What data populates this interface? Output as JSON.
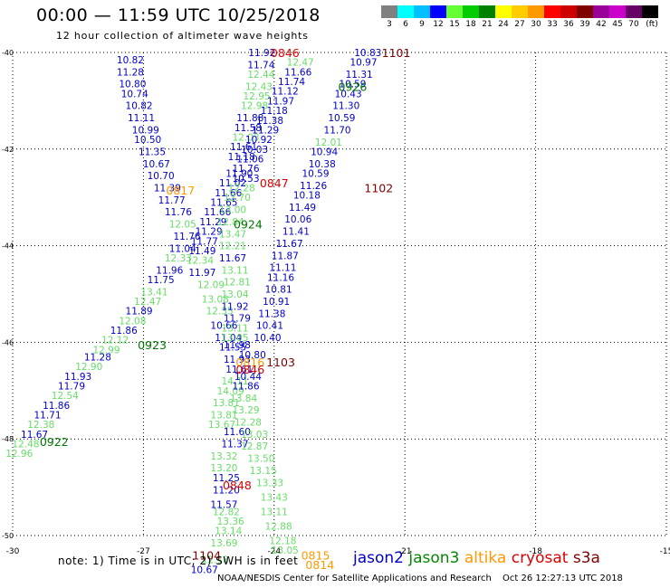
{
  "header": {
    "title": "00:00 — 11:59 UTC 10/25/2018",
    "subtitle": "12 hour collection of altimeter wave heights",
    "legend_unit": "(ft)"
  },
  "legend": {
    "colors": [
      "#808080",
      "#00ffff",
      "#00bfff",
      "#0000ff",
      "#66ff33",
      "#00cc00",
      "#008000",
      "#ffff00",
      "#ffcc00",
      "#ff9900",
      "#ff0000",
      "#cc0000",
      "#800000",
      "#990099",
      "#cc00cc",
      "#660066",
      "#000000"
    ],
    "labels": [
      "3",
      "6",
      "9",
      "12",
      "15",
      "18",
      "21",
      "24",
      "27",
      "30",
      "33",
      "36",
      "39",
      "42",
      "45",
      "70"
    ]
  },
  "colors": {
    "jason2": "#0000cc",
    "jason3": "#007700",
    "altika": "#ff9900",
    "cryosat": "#dd0000",
    "s3a": "#800000",
    "light": "#66dd66"
  },
  "chart_data": {
    "type": "scatter",
    "x_ticks": [
      "-30",
      "-27",
      "-24",
      "-21",
      "-18",
      "-15"
    ],
    "y_ticks": [
      "-40",
      "-42",
      "-44",
      "-46",
      "-48",
      "-50"
    ],
    "xlim": [
      -30,
      -15
    ],
    "ylim": [
      -50,
      -40
    ],
    "grid": true,
    "points": [
      {
        "t": "11.92",
        "c": "b",
        "lon": -24.28,
        "lat": -40.0
      },
      {
        "t": "11.74",
        "c": "b",
        "lon": -24.3,
        "lat": -40.25
      },
      {
        "t": "12.44",
        "c": "l",
        "lon": -24.3,
        "lat": -40.45
      },
      {
        "t": "12.43",
        "c": "l",
        "lon": -24.35,
        "lat": -40.7
      },
      {
        "t": "12.95",
        "c": "l",
        "lon": -24.4,
        "lat": -40.9
      },
      {
        "t": "12.98",
        "c": "l",
        "lon": -24.45,
        "lat": -41.1
      },
      {
        "t": "11.88",
        "c": "b",
        "lon": -24.55,
        "lat": -41.35
      },
      {
        "t": "11.58",
        "c": "b",
        "lon": -24.6,
        "lat": -41.55
      },
      {
        "t": "12.03",
        "c": "l",
        "lon": -24.65,
        "lat": -41.75
      },
      {
        "t": "11.61",
        "c": "b",
        "lon": -24.7,
        "lat": -41.95
      },
      {
        "t": "11.18",
        "c": "b",
        "lon": -24.75,
        "lat": -42.15
      },
      {
        "t": "11.90",
        "c": "b",
        "lon": -24.8,
        "lat": -42.5
      },
      {
        "t": "11.02",
        "c": "b",
        "lon": -24.95,
        "lat": -42.7
      },
      {
        "t": "11.66",
        "c": "b",
        "lon": -25.05,
        "lat": -42.9
      },
      {
        "t": "11.65",
        "c": "b",
        "lon": -25.15,
        "lat": -43.1
      },
      {
        "t": "11.66",
        "c": "b",
        "lon": -25.3,
        "lat": -43.3
      },
      {
        "t": "11.29",
        "c": "b",
        "lon": -25.4,
        "lat": -43.5
      },
      {
        "t": "11.29",
        "c": "b",
        "lon": -25.5,
        "lat": -43.7
      },
      {
        "t": "11.77",
        "c": "b",
        "lon": -25.6,
        "lat": -43.9
      },
      {
        "t": "11.49",
        "c": "b",
        "lon": -25.65,
        "lat": -44.1
      },
      {
        "t": "12.34",
        "c": "l",
        "lon": -25.7,
        "lat": -44.3
      },
      {
        "t": "11.97",
        "c": "b",
        "lon": -25.65,
        "lat": -44.55
      },
      {
        "t": "12.09",
        "c": "l",
        "lon": -25.45,
        "lat": -44.8
      },
      {
        "t": "13.08",
        "c": "l",
        "lon": -25.35,
        "lat": -45.1
      },
      {
        "t": "12.35",
        "c": "l",
        "lon": -25.25,
        "lat": -45.35
      },
      {
        "t": "10.66",
        "c": "b",
        "lon": -25.15,
        "lat": -45.65
      },
      {
        "t": "11.04",
        "c": "b",
        "lon": -25.05,
        "lat": -45.9
      },
      {
        "t": "11.55",
        "c": "b",
        "lon": -24.95,
        "lat": -46.1
      },
      {
        "t": "11.93",
        "c": "b",
        "lon": -24.85,
        "lat": -46.35
      },
      {
        "t": "11.61",
        "c": "b",
        "lon": -24.8,
        "lat": -46.55
      },
      {
        "t": "14.11",
        "c": "l",
        "lon": -24.9,
        "lat": -46.8
      },
      {
        "t": "14.09",
        "c": "l",
        "lon": -25.0,
        "lat": -47.0
      },
      {
        "t": "13.81",
        "c": "l",
        "lon": -25.1,
        "lat": -47.25
      },
      {
        "t": "13.81",
        "c": "l",
        "lon": -25.15,
        "lat": -47.5
      },
      {
        "t": "13.67",
        "c": "l",
        "lon": -25.2,
        "lat": -47.7
      },
      {
        "t": "11.60",
        "c": "b",
        "lon": -24.85,
        "lat": -47.85
      },
      {
        "t": "11.37",
        "c": "b",
        "lon": -24.9,
        "lat": -48.1
      },
      {
        "t": "13.32",
        "c": "l",
        "lon": -25.15,
        "lat": -48.35
      },
      {
        "t": "13.20",
        "c": "l",
        "lon": -25.15,
        "lat": -48.6
      },
      {
        "t": "11.25",
        "c": "b",
        "lon": -25.1,
        "lat": -48.8
      },
      {
        "t": "11.20",
        "c": "b",
        "lon": -25.1,
        "lat": -49.05
      },
      {
        "t": "11.57",
        "c": "b",
        "lon": -25.15,
        "lat": -49.35
      },
      {
        "t": "12.82",
        "c": "l",
        "lon": -25.1,
        "lat": -49.5
      },
      {
        "t": "13.36",
        "c": "l",
        "lon": -25.0,
        "lat": -49.7
      },
      {
        "t": "13.14",
        "c": "l",
        "lon": -25.05,
        "lat": -49.9
      },
      {
        "t": "13.69",
        "c": "l",
        "lon": -25.15,
        "lat": -50.15
      },
      {
        "t": "12.18",
        "c": "l",
        "lon": -25.35,
        "lat": -50.5
      },
      {
        "t": "10.67",
        "c": "b",
        "lon": -25.6,
        "lat": -50.7
      },
      {
        "t": "10.82",
        "c": "b",
        "lon": -27.3,
        "lat": -40.15
      },
      {
        "t": "11.28",
        "c": "b",
        "lon": -27.3,
        "lat": -40.4
      },
      {
        "t": "10.80",
        "c": "b",
        "lon": -27.25,
        "lat": -40.65
      },
      {
        "t": "10.74",
        "c": "b",
        "lon": -27.2,
        "lat": -40.85
      },
      {
        "t": "10.82",
        "c": "b",
        "lon": -27.1,
        "lat": -41.1
      },
      {
        "t": "11.11",
        "c": "b",
        "lon": -27.05,
        "lat": -41.35
      },
      {
        "t": "10.99",
        "c": "b",
        "lon": -26.95,
        "lat": -41.6
      },
      {
        "t": "10.50",
        "c": "b",
        "lon": -26.9,
        "lat": -41.8
      },
      {
        "t": "11.35",
        "c": "b",
        "lon": -26.8,
        "lat": -42.05
      },
      {
        "t": "10.67",
        "c": "b",
        "lon": -26.7,
        "lat": -42.3
      },
      {
        "t": "10.70",
        "c": "b",
        "lon": -26.6,
        "lat": -42.55
      },
      {
        "t": "11.39",
        "c": "b",
        "lon": -26.45,
        "lat": -42.8
      },
      {
        "t": "11.77",
        "c": "b",
        "lon": -26.35,
        "lat": -43.05
      },
      {
        "t": "11.76",
        "c": "b",
        "lon": -26.2,
        "lat": -43.3
      },
      {
        "t": "12.05",
        "c": "l",
        "lon": -26.1,
        "lat": -43.55
      },
      {
        "t": "11.76",
        "c": "b",
        "lon": -26.0,
        "lat": -43.8
      },
      {
        "t": "11.04",
        "c": "b",
        "lon": -26.1,
        "lat": -44.05
      },
      {
        "t": "12.33",
        "c": "l",
        "lon": -26.2,
        "lat": -44.25
      },
      {
        "t": "11.96",
        "c": "b",
        "lon": -26.4,
        "lat": -44.5
      },
      {
        "t": "11.75",
        "c": "b",
        "lon": -26.6,
        "lat": -44.7
      },
      {
        "t": "13.41",
        "c": "l",
        "lon": -26.75,
        "lat": -44.95
      },
      {
        "t": "12.47",
        "c": "l",
        "lon": -26.9,
        "lat": -45.15
      },
      {
        "t": "11.89",
        "c": "b",
        "lon": -27.1,
        "lat": -45.35
      },
      {
        "t": "12.08",
        "c": "l",
        "lon": -27.25,
        "lat": -45.55
      },
      {
        "t": "11.86",
        "c": "b",
        "lon": -27.45,
        "lat": -45.75
      },
      {
        "t": "12.12",
        "c": "l",
        "lon": -27.65,
        "lat": -45.95
      },
      {
        "t": "12.99",
        "c": "l",
        "lon": -27.85,
        "lat": -46.15
      },
      {
        "t": "11.28",
        "c": "b",
        "lon": -28.05,
        "lat": -46.3
      },
      {
        "t": "12.90",
        "c": "l",
        "lon": -28.25,
        "lat": -46.5
      },
      {
        "t": "11.93",
        "c": "b",
        "lon": -28.5,
        "lat": -46.7
      },
      {
        "t": "11.79",
        "c": "b",
        "lon": -28.65,
        "lat": -46.9
      },
      {
        "t": "12.54",
        "c": "l",
        "lon": -28.8,
        "lat": -47.1
      },
      {
        "t": "11.86",
        "c": "b",
        "lon": -29.0,
        "lat": -47.3
      },
      {
        "t": "11.71",
        "c": "b",
        "lon": -29.2,
        "lat": -47.5
      },
      {
        "t": "12.38",
        "c": "l",
        "lon": -29.35,
        "lat": -47.7
      },
      {
        "t": "11.67",
        "c": "b",
        "lon": -29.5,
        "lat": -47.9
      },
      {
        "t": "12.48",
        "c": "l",
        "lon": -29.7,
        "lat": -48.1
      },
      {
        "t": "12.96",
        "c": "l",
        "lon": -29.85,
        "lat": -48.3
      },
      {
        "t": "12.47",
        "c": "l",
        "lon": -23.4,
        "lat": -40.2
      },
      {
        "t": "11.66",
        "c": "b",
        "lon": -23.45,
        "lat": -40.4
      },
      {
        "t": "11.74",
        "c": "b",
        "lon": -23.6,
        "lat": -40.6
      },
      {
        "t": "11.12",
        "c": "b",
        "lon": -23.75,
        "lat": -40.8
      },
      {
        "t": "11.97",
        "c": "b",
        "lon": -23.85,
        "lat": -41.0
      },
      {
        "t": "11.18",
        "c": "b",
        "lon": -24.0,
        "lat": -41.2
      },
      {
        "t": "11.38",
        "c": "b",
        "lon": -24.1,
        "lat": -41.4
      },
      {
        "t": "11.29",
        "c": "b",
        "lon": -24.2,
        "lat": -41.6
      },
      {
        "t": "10.92",
        "c": "b",
        "lon": -24.35,
        "lat": -41.8
      },
      {
        "t": "10.03",
        "c": "b",
        "lon": -24.45,
        "lat": -42.0
      },
      {
        "t": "11.06",
        "c": "b",
        "lon": -24.55,
        "lat": -42.2
      },
      {
        "t": "11.76",
        "c": "b",
        "lon": -24.65,
        "lat": -42.4
      },
      {
        "t": "10.53",
        "c": "b",
        "lon": -24.65,
        "lat": -42.6
      },
      {
        "t": "12.28",
        "c": "l",
        "lon": -24.75,
        "lat": -42.8
      },
      {
        "t": "12.70",
        "c": "l",
        "lon": -24.85,
        "lat": -43.0
      },
      {
        "t": "13.00",
        "c": "l",
        "lon": -24.95,
        "lat": -43.25
      },
      {
        "t": "12.84",
        "c": "l",
        "lon": -25.0,
        "lat": -43.5
      },
      {
        "t": "13.47",
        "c": "l",
        "lon": -24.95,
        "lat": -43.75
      },
      {
        "t": "12.21",
        "c": "l",
        "lon": -24.95,
        "lat": -44.0
      },
      {
        "t": "11.67",
        "c": "b",
        "lon": -24.95,
        "lat": -44.25
      },
      {
        "t": "13.11",
        "c": "l",
        "lon": -24.9,
        "lat": -44.5
      },
      {
        "t": "12.81",
        "c": "l",
        "lon": -24.85,
        "lat": -44.75
      },
      {
        "t": "13.04",
        "c": "l",
        "lon": -24.9,
        "lat": -45.0
      },
      {
        "t": "11.92",
        "c": "b",
        "lon": -24.9,
        "lat": -45.25
      },
      {
        "t": "11.79",
        "c": "b",
        "lon": -24.85,
        "lat": -45.5
      },
      {
        "t": "13.11",
        "c": "l",
        "lon": -24.9,
        "lat": -45.7
      },
      {
        "t": "13.05",
        "c": "l",
        "lon": -24.9,
        "lat": -45.9
      },
      {
        "t": "11.98",
        "c": "b",
        "lon": -24.85,
        "lat": -46.05
      },
      {
        "t": "10.80",
        "c": "b",
        "lon": -24.5,
        "lat": -46.25
      },
      {
        "t": "10.44",
        "c": "b",
        "lon": -24.6,
        "lat": -46.7
      },
      {
        "t": "11.86",
        "c": "b",
        "lon": -24.65,
        "lat": -46.9
      },
      {
        "t": "13.84",
        "c": "l",
        "lon": -24.7,
        "lat": -47.15
      },
      {
        "t": "13.29",
        "c": "l",
        "lon": -24.65,
        "lat": -47.4
      },
      {
        "t": "12.28",
        "c": "l",
        "lon": -24.6,
        "lat": -47.65
      },
      {
        "t": "13.03",
        "c": "l",
        "lon": -24.45,
        "lat": -47.9
      },
      {
        "t": "12.87",
        "c": "l",
        "lon": -24.45,
        "lat": -48.15
      },
      {
        "t": "13.50",
        "c": "l",
        "lon": -24.3,
        "lat": -48.4
      },
      {
        "t": "13.15",
        "c": "l",
        "lon": -24.25,
        "lat": -48.65
      },
      {
        "t": "13.33",
        "c": "l",
        "lon": -24.1,
        "lat": -48.9
      },
      {
        "t": "13.43",
        "c": "l",
        "lon": -24.0,
        "lat": -49.2
      },
      {
        "t": "13.11",
        "c": "l",
        "lon": -24.0,
        "lat": -49.5
      },
      {
        "t": "12.88",
        "c": "l",
        "lon": -23.9,
        "lat": -49.8
      },
      {
        "t": "12.18",
        "c": "l",
        "lon": -23.8,
        "lat": -50.1
      },
      {
        "t": "13.05",
        "c": "l",
        "lon": -23.75,
        "lat": -50.3
      },
      {
        "t": "10.83",
        "c": "b",
        "lon": -21.85,
        "lat": -40.0
      },
      {
        "t": "10.97",
        "c": "b",
        "lon": -21.95,
        "lat": -40.2
      },
      {
        "t": "11.31",
        "c": "b",
        "lon": -22.05,
        "lat": -40.45
      },
      {
        "t": "10.59",
        "c": "b",
        "lon": -22.2,
        "lat": -40.65
      },
      {
        "t": "10.43",
        "c": "b",
        "lon": -22.3,
        "lat": -40.85
      },
      {
        "t": "11.30",
        "c": "b",
        "lon": -22.35,
        "lat": -41.1
      },
      {
        "t": "10.59",
        "c": "b",
        "lon": -22.45,
        "lat": -41.35
      },
      {
        "t": "11.70",
        "c": "b",
        "lon": -22.55,
        "lat": -41.6
      },
      {
        "t": "12.01",
        "c": "l",
        "lon": -22.75,
        "lat": -41.85
      },
      {
        "t": "10.94",
        "c": "b",
        "lon": -22.85,
        "lat": -42.05
      },
      {
        "t": "10.38",
        "c": "b",
        "lon": -22.9,
        "lat": -42.3
      },
      {
        "t": "10.59",
        "c": "b",
        "lon": -23.05,
        "lat": -42.5
      },
      {
        "t": "11.26",
        "c": "b",
        "lon": -23.1,
        "lat": -42.75
      },
      {
        "t": "10.18",
        "c": "b",
        "lon": -23.25,
        "lat": -42.95
      },
      {
        "t": "11.49",
        "c": "b",
        "lon": -23.35,
        "lat": -43.2
      },
      {
        "t": "10.06",
        "c": "b",
        "lon": -23.45,
        "lat": -43.45
      },
      {
        "t": "11.41",
        "c": "b",
        "lon": -23.5,
        "lat": -43.7
      },
      {
        "t": "11.67",
        "c": "b",
        "lon": -23.65,
        "lat": -43.95
      },
      {
        "t": "11.87",
        "c": "b",
        "lon": -23.75,
        "lat": -44.2
      },
      {
        "t": "11.11",
        "c": "b",
        "lon": -23.8,
        "lat": -44.45
      },
      {
        "t": "11.16",
        "c": "b",
        "lon": -23.85,
        "lat": -44.65
      },
      {
        "t": "10.81",
        "c": "b",
        "lon": -23.9,
        "lat": -44.9
      },
      {
        "t": "10.91",
        "c": "b",
        "lon": -23.95,
        "lat": -45.15
      },
      {
        "t": "11.38",
        "c": "b",
        "lon": -24.05,
        "lat": -45.4
      },
      {
        "t": "10.41",
        "c": "b",
        "lon": -24.1,
        "lat": -45.65
      },
      {
        "t": "10.40",
        "c": "b",
        "lon": -24.15,
        "lat": -45.9
      }
    ],
    "labels": [
      {
        "t": "0846",
        "c": "r",
        "lon": -23.75,
        "lat": -40.0
      },
      {
        "t": "1101",
        "c": "m",
        "lon": -21.2,
        "lat": -40.0
      },
      {
        "t": "0926",
        "c": "g",
        "lon": -22.2,
        "lat": -40.7
      },
      {
        "t": "0847",
        "c": "r",
        "lon": -24.0,
        "lat": -42.7
      },
      {
        "t": "1102",
        "c": "m",
        "lon": -21.6,
        "lat": -42.8
      },
      {
        "t": "0817",
        "c": "o",
        "lon": -26.15,
        "lat": -42.85
      },
      {
        "t": "0924",
        "c": "g",
        "lon": -24.6,
        "lat": -43.55
      },
      {
        "t": "0923",
        "c": "g",
        "lon": -26.8,
        "lat": -46.05
      },
      {
        "t": "0816",
        "c": "o",
        "lon": -24.55,
        "lat": -46.4
      },
      {
        "t": "0846",
        "c": "r",
        "lon": -24.55,
        "lat": -46.55
      },
      {
        "t": "1103",
        "c": "m",
        "lon": -23.85,
        "lat": -46.4
      },
      {
        "t": "0922",
        "c": "g",
        "lon": -29.05,
        "lat": -48.05
      },
      {
        "t": "0848",
        "c": "r",
        "lon": -24.85,
        "lat": -48.95
      },
      {
        "t": "1104",
        "c": "m",
        "lon": -25.55,
        "lat": -50.4
      },
      {
        "t": "0815",
        "c": "o",
        "lon": -23.05,
        "lat": -50.4
      },
      {
        "t": "0814",
        "c": "o",
        "lon": -22.95,
        "lat": -50.6
      }
    ]
  },
  "footer": {
    "note": "note: 1) Time is in UTC; 2) SWH is in feet",
    "satellites": [
      {
        "name": "jason2",
        "color": "#0000cc"
      },
      {
        "name": "jason3",
        "color": "#008800"
      },
      {
        "name": "altika",
        "color": "#ff9900"
      },
      {
        "name": "cryosat",
        "color": "#dd0000"
      },
      {
        "name": "s3a",
        "color": "#800000"
      }
    ],
    "credit": "NOAA/NESDIS Center for Satellite Applications and Research",
    "timestamp": "Oct 26 12:27:13 UTC 2018"
  }
}
